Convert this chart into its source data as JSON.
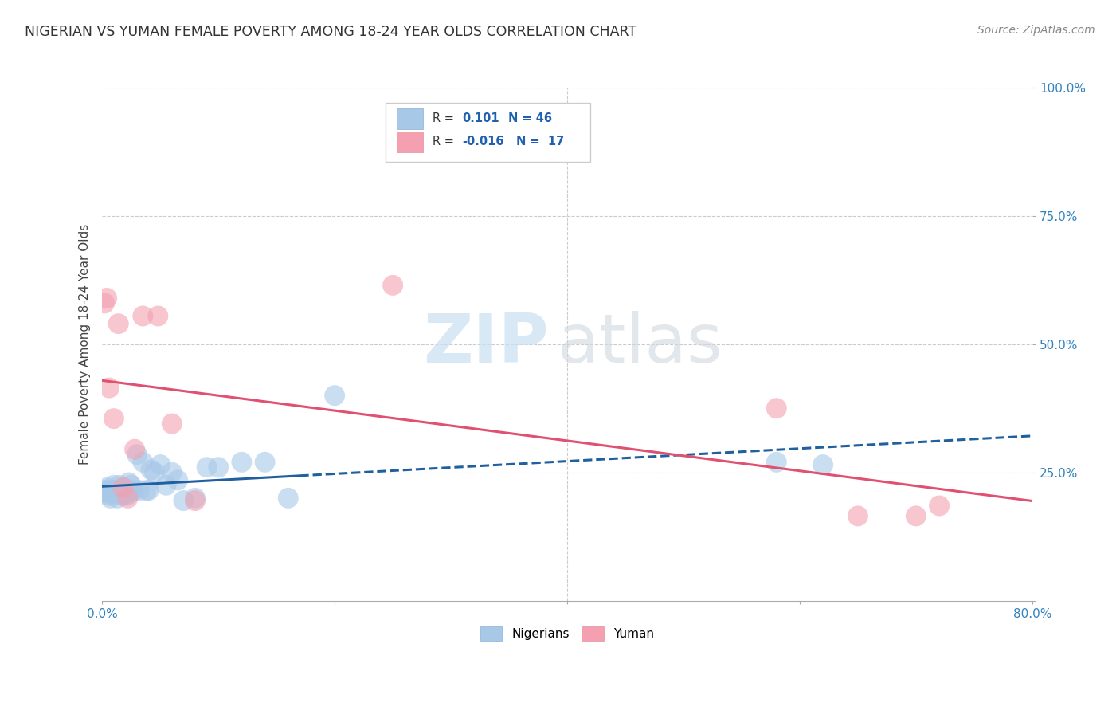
{
  "title": "NIGERIAN VS YUMAN FEMALE POVERTY AMONG 18-24 YEAR OLDS CORRELATION CHART",
  "source": "Source: ZipAtlas.com",
  "ylabel": "Female Poverty Among 18-24 Year Olds",
  "xlim": [
    0.0,
    0.8
  ],
  "ylim": [
    0.0,
    1.0
  ],
  "yticks": [
    0.0,
    0.25,
    0.5,
    0.75,
    1.0
  ],
  "ytick_labels": [
    "",
    "25.0%",
    "50.0%",
    "75.0%",
    "100.0%"
  ],
  "xticks": [
    0.0,
    0.2,
    0.4,
    0.6,
    0.8
  ],
  "xtick_labels": [
    "0.0%",
    "",
    "",
    "",
    "80.0%"
  ],
  "nigerian_R": 0.101,
  "nigerian_N": 46,
  "yuman_R": -0.016,
  "yuman_N": 17,
  "nigerian_color": "#a8c8e8",
  "yuman_color": "#f4a0b0",
  "nigerian_line_color": "#2060a0",
  "yuman_line_color": "#e05070",
  "nigerian_x": [
    0.002,
    0.003,
    0.004,
    0.005,
    0.006,
    0.007,
    0.008,
    0.009,
    0.01,
    0.011,
    0.012,
    0.013,
    0.014,
    0.015,
    0.016,
    0.017,
    0.018,
    0.019,
    0.02,
    0.021,
    0.022,
    0.023,
    0.024,
    0.025,
    0.027,
    0.03,
    0.032,
    0.035,
    0.038,
    0.04,
    0.042,
    0.045,
    0.05,
    0.055,
    0.06,
    0.065,
    0.07,
    0.08,
    0.09,
    0.1,
    0.12,
    0.14,
    0.16,
    0.2,
    0.58,
    0.62
  ],
  "nigerian_y": [
    0.215,
    0.21,
    0.22,
    0.215,
    0.205,
    0.2,
    0.215,
    0.21,
    0.225,
    0.215,
    0.21,
    0.2,
    0.215,
    0.225,
    0.21,
    0.205,
    0.215,
    0.22,
    0.21,
    0.205,
    0.215,
    0.23,
    0.21,
    0.225,
    0.215,
    0.285,
    0.215,
    0.27,
    0.215,
    0.215,
    0.255,
    0.25,
    0.265,
    0.225,
    0.25,
    0.235,
    0.195,
    0.2,
    0.26,
    0.26,
    0.27,
    0.27,
    0.2,
    0.4,
    0.27,
    0.265
  ],
  "yuman_x": [
    0.002,
    0.004,
    0.006,
    0.01,
    0.014,
    0.018,
    0.022,
    0.028,
    0.035,
    0.048,
    0.06,
    0.08,
    0.25,
    0.58,
    0.65,
    0.7,
    0.72
  ],
  "yuman_y": [
    0.58,
    0.59,
    0.415,
    0.355,
    0.54,
    0.22,
    0.2,
    0.295,
    0.555,
    0.555,
    0.345,
    0.195,
    0.615,
    0.375,
    0.165,
    0.165,
    0.185
  ],
  "watermark_zip": "ZIP",
  "watermark_atlas": "atlas",
  "legend_R1": "R =",
  "legend_V1": "0.101",
  "legend_N1": "N = 46",
  "legend_R2": "R =",
  "legend_V2": "-0.016",
  "legend_N2": "N =  17"
}
